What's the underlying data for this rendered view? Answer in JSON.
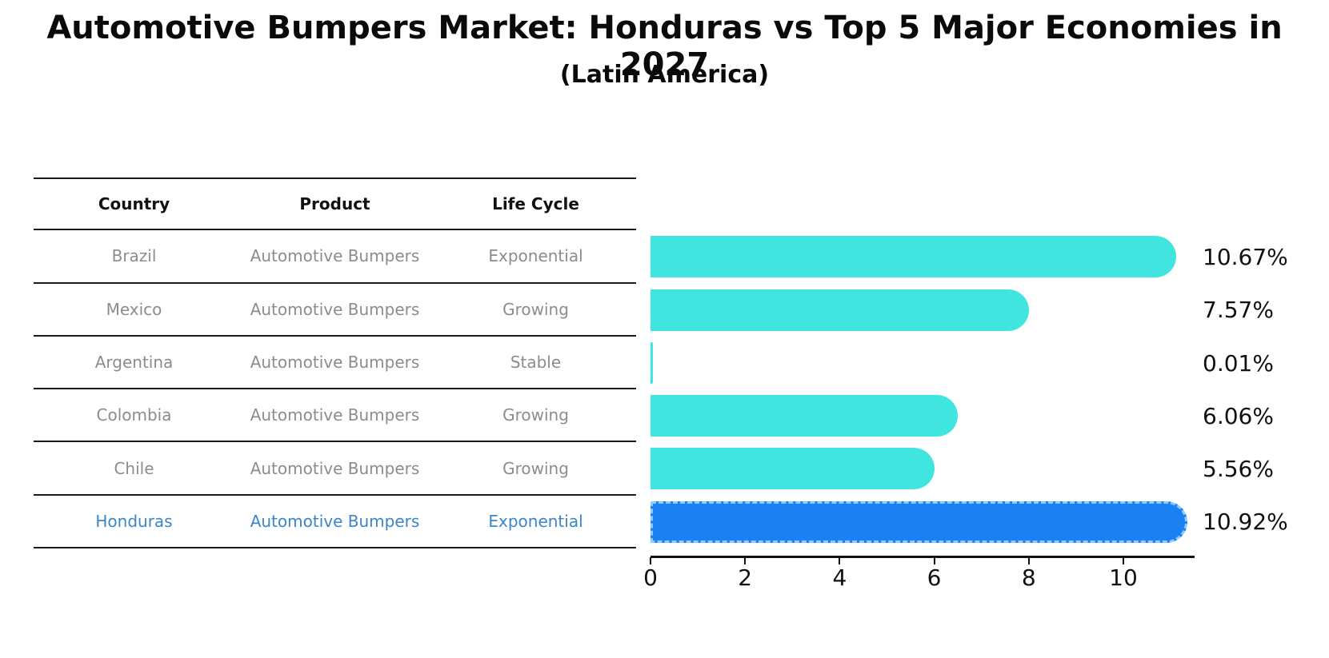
{
  "title": "Automotive Bumpers Market: Honduras vs Top 5 Major Economies in 2027",
  "subtitle": "(Latin America)",
  "colors": {
    "bar": "#40E5DF",
    "highlight_bar": "#1B81F2",
    "highlight_border": "#8ECBFF",
    "highlight_text": "#3A86C8",
    "row_text": "#8C8C8C",
    "axis": "#111111"
  },
  "table": {
    "headers": [
      "Country",
      "Product",
      "Life Cycle"
    ],
    "rows": [
      {
        "country": "Brazil",
        "product": "Automotive Bumpers",
        "life_cycle": "Exponential",
        "highlight": false
      },
      {
        "country": "Mexico",
        "product": "Automotive Bumpers",
        "life_cycle": "Growing",
        "highlight": false
      },
      {
        "country": "Argentina",
        "product": "Automotive Bumpers",
        "life_cycle": "Stable",
        "highlight": false
      },
      {
        "country": "Colombia",
        "product": "Automotive Bumpers",
        "life_cycle": "Growing",
        "highlight": false
      },
      {
        "country": "Chile",
        "product": "Automotive Bumpers",
        "life_cycle": "Growing",
        "highlight": false
      },
      {
        "country": "Honduras",
        "product": "Automotive Bumpers",
        "life_cycle": "Exponential",
        "highlight": true
      }
    ]
  },
  "chart_data": {
    "type": "bar",
    "orientation": "horizontal",
    "title": "Automotive Bumpers Market: Honduras vs Top 5 Major Economies in 2027",
    "subtitle": "(Latin America)",
    "categories": [
      "Brazil",
      "Mexico",
      "Argentina",
      "Colombia",
      "Chile",
      "Honduras"
    ],
    "values": [
      10.67,
      7.57,
      0.01,
      6.06,
      5.56,
      10.92
    ],
    "value_labels": [
      "10.67%",
      "7.57%",
      "0.01%",
      "6.06%",
      "5.56%",
      "10.92%"
    ],
    "highlight_index": 5,
    "xlabel": "",
    "ylabel": "",
    "xlim": [
      0,
      11.5
    ],
    "xticks": [
      0,
      2,
      4,
      6,
      8,
      10
    ],
    "grid": false,
    "legend": null
  }
}
